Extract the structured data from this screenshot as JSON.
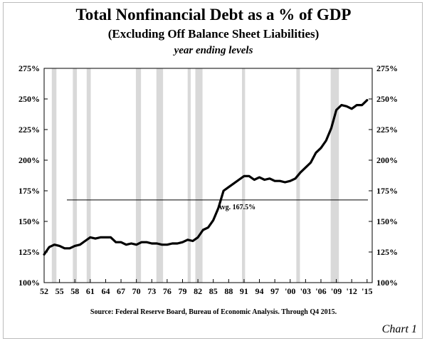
{
  "header": {
    "title": "Total Nonfinancial Debt as a % of GDP",
    "subtitle": "(Excluding Off Balance Sheet Liabilities)",
    "note": "year ending levels"
  },
  "footer": {
    "source": "Source:  Federal Reserve Board, Bureau of Economic Analysis.  Through Q4 2015.",
    "chart_number": "Chart 1"
  },
  "chart_data": {
    "type": "line",
    "title": "Total Nonfinancial Debt as a % of GDP",
    "subtitle": "(Excluding Off Balance Sheet Liabilities)",
    "xlabel": "",
    "ylabel": "",
    "xlim": [
      1952,
      2016
    ],
    "ylim": [
      100,
      275
    ],
    "y_ticks": [
      100,
      125,
      150,
      175,
      200,
      225,
      250,
      275
    ],
    "y_tick_labels": [
      "100%",
      "125%",
      "150%",
      "175%",
      "200%",
      "225%",
      "250%",
      "275%"
    ],
    "x_tick_values": [
      1952,
      1955,
      1958,
      1961,
      1964,
      1967,
      1970,
      1973,
      1976,
      1979,
      1982,
      1985,
      1988,
      1991,
      1994,
      1997,
      2000,
      2003,
      2006,
      2009,
      2012,
      2015
    ],
    "x_tick_labels": [
      "52",
      "55",
      "58",
      "61",
      "64",
      "67",
      "70",
      "73",
      "76",
      "79",
      "82",
      "85",
      "88",
      "91",
      "94",
      "97",
      "'00",
      "'03",
      "'06",
      "'09",
      "'12",
      "'15"
    ],
    "grid": false,
    "line_color": "#000000",
    "shade_color": "#d9d9d9",
    "recessions": [
      [
        1953.5,
        1954.4
      ],
      [
        1957.6,
        1958.4
      ],
      [
        1960.3,
        1961.1
      ],
      [
        1969.9,
        1970.9
      ],
      [
        1973.9,
        1975.2
      ],
      [
        1980.0,
        1980.6
      ],
      [
        1981.5,
        1982.9
      ],
      [
        1990.6,
        1991.2
      ],
      [
        2001.2,
        2001.9
      ],
      [
        2007.9,
        2009.5
      ]
    ],
    "average": {
      "value": 167.5,
      "label": "Avg. 167.5%"
    },
    "series": [
      {
        "values": [
          [
            1952.0,
            123
          ],
          [
            1953.0,
            129
          ],
          [
            1954.0,
            131
          ],
          [
            1955.0,
            130
          ],
          [
            1956.0,
            128
          ],
          [
            1957.0,
            128
          ],
          [
            1958.0,
            130
          ],
          [
            1959.0,
            131
          ],
          [
            1960.0,
            134
          ],
          [
            1961.0,
            137
          ],
          [
            1962.0,
            136
          ],
          [
            1963.0,
            137
          ],
          [
            1964.0,
            137
          ],
          [
            1965.0,
            137
          ],
          [
            1966.0,
            133
          ],
          [
            1967.0,
            133
          ],
          [
            1968.0,
            131
          ],
          [
            1969.0,
            132
          ],
          [
            1970.0,
            131
          ],
          [
            1971.0,
            133
          ],
          [
            1972.0,
            133
          ],
          [
            1973.0,
            132
          ],
          [
            1974.0,
            132
          ],
          [
            1975.0,
            131
          ],
          [
            1976.0,
            131
          ],
          [
            1977.0,
            132
          ],
          [
            1978.0,
            132
          ],
          [
            1979.0,
            133
          ],
          [
            1980.0,
            135
          ],
          [
            1981.0,
            134
          ],
          [
            1982.0,
            137
          ],
          [
            1983.0,
            143
          ],
          [
            1984.0,
            145
          ],
          [
            1985.0,
            151
          ],
          [
            1986.0,
            161
          ],
          [
            1987.0,
            175
          ],
          [
            1988.0,
            178
          ],
          [
            1989.0,
            181
          ],
          [
            1990.0,
            184
          ],
          [
            1991.0,
            187
          ],
          [
            1992.0,
            187
          ],
          [
            1993.0,
            184
          ],
          [
            1994.0,
            186
          ],
          [
            1995.0,
            184
          ],
          [
            1996.0,
            185
          ],
          [
            1997.0,
            183
          ],
          [
            1998.0,
            183
          ],
          [
            1999.0,
            182
          ],
          [
            2000.0,
            183
          ],
          [
            2001.0,
            185
          ],
          [
            2002.0,
            190
          ],
          [
            2003.0,
            194
          ],
          [
            2004.0,
            198
          ],
          [
            2005.0,
            206
          ],
          [
            2006.0,
            210
          ],
          [
            2007.0,
            216
          ],
          [
            2008.0,
            226
          ],
          [
            2009.0,
            241
          ],
          [
            2010.0,
            245
          ],
          [
            2011.0,
            244
          ],
          [
            2012.0,
            242
          ],
          [
            2013.0,
            245
          ],
          [
            2014.0,
            245
          ],
          [
            2015.0,
            249
          ]
        ]
      }
    ]
  }
}
